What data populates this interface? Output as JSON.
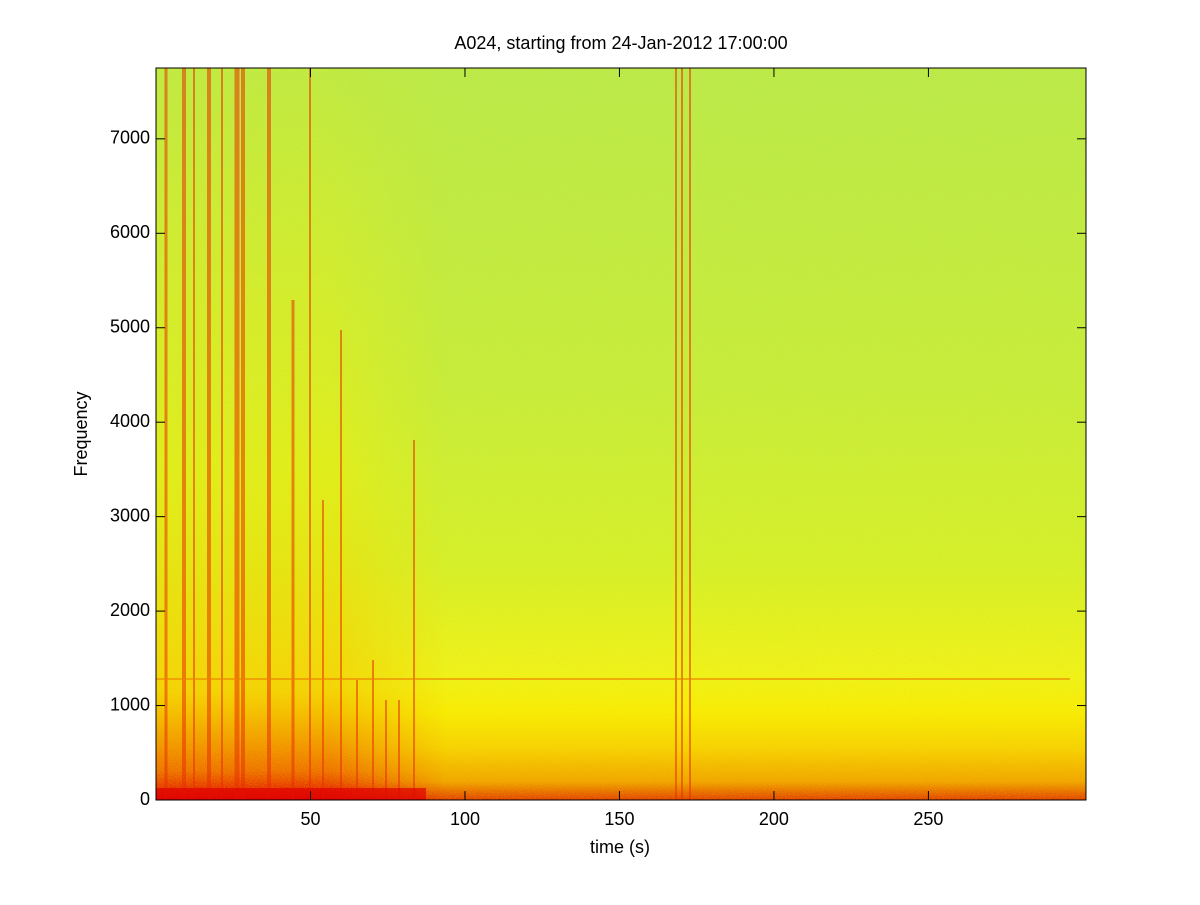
{
  "chart_data": {
    "type": "spectrogram",
    "title": "A024, starting from 24-Jan-2012 17:00:00",
    "x_label": "time (s)",
    "y_label": "Frequency",
    "xlim": [
      0,
      301
    ],
    "ylim": [
      0,
      7750
    ],
    "xticks": [
      50,
      100,
      150,
      200,
      250
    ],
    "yticks": [
      0,
      1000,
      2000,
      3000,
      4000,
      5000,
      6000,
      7000
    ]
  }
}
